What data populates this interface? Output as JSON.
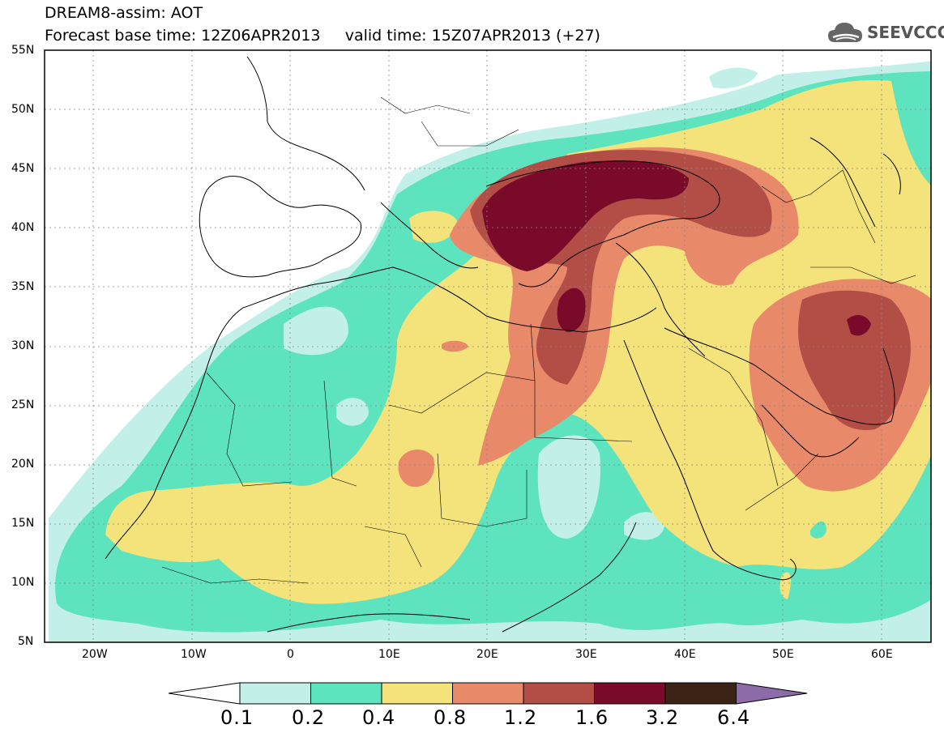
{
  "header": {
    "line1": "DREAM8-assim: AOT",
    "line2": "Forecast base time: 12Z06APR2013     valid time: 15Z07APR2013 (+27)"
  },
  "logo": {
    "text": "SEEVCCC",
    "icon": "cloud-icon"
  },
  "map": {
    "lat_labels": [
      "55N",
      "50N",
      "45N",
      "40N",
      "35N",
      "30N",
      "25N",
      "20N",
      "15N",
      "10N",
      "5N"
    ],
    "lon_labels": [
      "20W",
      "10W",
      "0",
      "10E",
      "20E",
      "30E",
      "40E",
      "50E",
      "60E"
    ]
  },
  "colorbar": {
    "labels": [
      "0.1",
      "0.2",
      "0.4",
      "0.8",
      "1.2",
      "1.6",
      "3.2",
      "6.4"
    ],
    "colors": [
      "#c2f0e8",
      "#5ee3bf",
      "#f4e27a",
      "#e8896a",
      "#b24e45",
      "#7a0a2a",
      "#3b2416",
      "#8d6ba8"
    ]
  }
}
